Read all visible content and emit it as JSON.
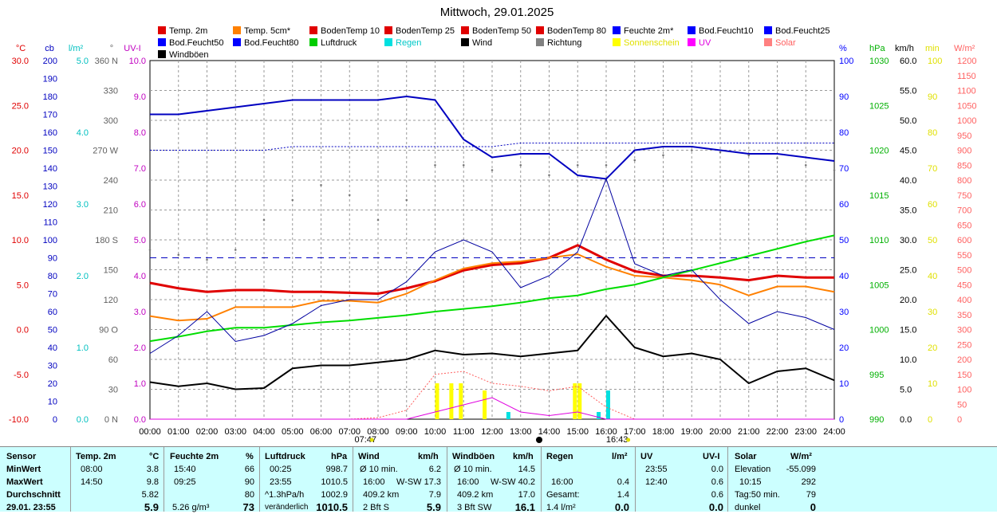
{
  "title": "Mittwoch, 29.01.2025",
  "legend": [
    {
      "label": "Temp. 2m",
      "color": "#e00000"
    },
    {
      "label": "Temp. 5cm*",
      "color": "#ff8000"
    },
    {
      "label": "BodenTemp 10",
      "color": "#e00000"
    },
    {
      "label": "BodenTemp 25",
      "color": "#e00000"
    },
    {
      "label": "BodenTemp 50",
      "color": "#e00000"
    },
    {
      "label": "BodenTemp 80",
      "color": "#e00000"
    },
    {
      "label": "Feuchte 2m*",
      "color": "#0000ff"
    },
    {
      "label": "Bod.Feucht10",
      "color": "#0000ff"
    },
    {
      "label": "Bod.Feucht25",
      "color": "#0000ff"
    },
    {
      "label": "Bod.Feucht50",
      "color": "#0000ff"
    },
    {
      "label": "Bod.Feucht80",
      "color": "#0000ff"
    },
    {
      "label": "Luftdruck",
      "color": "#00cc00"
    },
    {
      "label": "Regen",
      "color": "#00e0e0"
    },
    {
      "label": "Wind",
      "color": "#000000"
    },
    {
      "label": "Richtung",
      "color": "#808080"
    },
    {
      "label": "Sonnenschein",
      "color": "#ffff00"
    },
    {
      "label": "UV",
      "color": "#ff00ff"
    },
    {
      "label": "Solar",
      "color": "#ff8080"
    },
    {
      "label": "Windböen",
      "color": "#000000"
    }
  ],
  "axes": {
    "temp": {
      "unit": "°C",
      "color": "#e00000",
      "ticks": [
        "30.0",
        "25.0",
        "20.0",
        "15.0",
        "10.0",
        "5.0",
        "0.0",
        "-5.0",
        "-10.0"
      ]
    },
    "cb": {
      "unit": "cb",
      "color": "#0000c0",
      "ticks": [
        "200",
        "190",
        "180",
        "170",
        "160",
        "150",
        "140",
        "130",
        "120",
        "110",
        "100",
        "90",
        "80",
        "70",
        "60",
        "50",
        "40",
        "30",
        "20",
        "10",
        "0"
      ]
    },
    "rain": {
      "unit": "l/m²",
      "color": "#00c0c0",
      "ticks": [
        "5.0",
        "4.0",
        "3.0",
        "2.0",
        "1.0",
        "0.0"
      ]
    },
    "dir": {
      "unit": "°",
      "color": "#606060",
      "ticks": [
        "360 N",
        "330",
        "300",
        "270 W",
        "240",
        "210",
        "180 S",
        "150",
        "120",
        "90 O",
        "60",
        "30",
        "0 N"
      ]
    },
    "uv": {
      "unit": "UV-I",
      "color": "#c000c0",
      "ticks": [
        "10.0",
        "9.0",
        "8.0",
        "7.0",
        "6.0",
        "5.0",
        "4.0",
        "3.0",
        "2.0",
        "1.0",
        "0.0"
      ]
    },
    "hum": {
      "unit": "%",
      "color": "#0000ff",
      "ticks": [
        "100",
        "90",
        "80",
        "70",
        "60",
        "50",
        "40",
        "30",
        "20",
        "10",
        "0"
      ]
    },
    "press": {
      "unit": "hPa",
      "color": "#00b000",
      "ticks": [
        "1030",
        "1025",
        "1020",
        "1015",
        "1010",
        "1005",
        "1000",
        "995",
        "990"
      ]
    },
    "wind": {
      "unit": "km/h",
      "color": "#000000",
      "ticks": [
        "60.0",
        "55.0",
        "50.0",
        "45.0",
        "40.0",
        "35.0",
        "30.0",
        "25.0",
        "20.0",
        "15.0",
        "10.0",
        "5.0",
        "0.0"
      ]
    },
    "sun": {
      "unit": "min",
      "color": "#e0e000",
      "ticks": [
        "100",
        "90",
        "80",
        "70",
        "60",
        "50",
        "40",
        "30",
        "20",
        "10",
        "0"
      ]
    },
    "solar": {
      "unit": "W/m²",
      "color": "#ff6060",
      "ticks": [
        "1200",
        "1150",
        "1100",
        "1050",
        "1000",
        "950",
        "900",
        "850",
        "800",
        "750",
        "700",
        "650",
        "600",
        "550",
        "500",
        "450",
        "400",
        "350",
        "300",
        "250",
        "200",
        "150",
        "100",
        "50",
        "0"
      ]
    }
  },
  "sun_events": {
    "sunrise": "07:47",
    "sunset": "16:43"
  },
  "chart_data": {
    "type": "line",
    "x": [
      "00:00",
      "01:00",
      "02:00",
      "03:00",
      "04:00",
      "05:00",
      "06:00",
      "07:00",
      "08:00",
      "09:00",
      "10:00",
      "11:00",
      "12:00",
      "13:00",
      "14:00",
      "15:00",
      "16:00",
      "17:00",
      "18:00",
      "19:00",
      "20:00",
      "21:00",
      "22:00",
      "23:00",
      "24:00"
    ],
    "series": [
      {
        "name": "Temp. 2m",
        "axis": "temp",
        "values": [
          5.2,
          4.6,
          4.2,
          4.4,
          4.4,
          4.2,
          4.2,
          4.1,
          4.0,
          4.6,
          5.4,
          6.6,
          7.2,
          7.4,
          8.0,
          9.4,
          7.8,
          6.5,
          6.0,
          6.0,
          5.8,
          5.5,
          6.0,
          5.8,
          5.8
        ]
      },
      {
        "name": "Temp. 5cm*",
        "axis": "temp",
        "values": [
          1.5,
          1.0,
          1.2,
          2.5,
          2.5,
          2.5,
          3.2,
          3.2,
          3.0,
          4.0,
          5.5,
          6.8,
          7.4,
          7.6,
          8.0,
          8.4,
          7.0,
          6.0,
          5.8,
          5.5,
          5.0,
          3.8,
          4.8,
          4.8,
          4.2
        ]
      },
      {
        "name": "Feuchte 2m*",
        "axis": "hum",
        "values": [
          85,
          85,
          86,
          87,
          88,
          89,
          89,
          89,
          89,
          90,
          89,
          78,
          73,
          74,
          74,
          68,
          67,
          75,
          76,
          76,
          75,
          74,
          74,
          73,
          72
        ]
      },
      {
        "name": "Bod.Feucht10",
        "axis": "hum",
        "values": [
          75,
          75,
          75,
          75,
          75,
          76,
          76,
          76,
          76,
          76,
          76,
          76,
          76,
          77,
          77,
          77,
          77,
          77,
          77,
          77,
          77,
          77,
          77,
          77,
          77
        ]
      },
      {
        "name": "Bod.Feucht80",
        "axis": "hum",
        "values": [
          45,
          45,
          45,
          45,
          45,
          45,
          45,
          45,
          45,
          45,
          45,
          45,
          45,
          45,
          45,
          45,
          45,
          45,
          45,
          45,
          45,
          45,
          45,
          45,
          45
        ]
      },
      {
        "name": "Luftdruck",
        "axis": "press",
        "values": [
          998.7,
          999.2,
          999.8,
          1000.2,
          1000.2,
          1000.5,
          1000.8,
          1001.0,
          1001.3,
          1001.6,
          1002.0,
          1002.3,
          1002.6,
          1003.0,
          1003.5,
          1003.8,
          1004.5,
          1005.0,
          1005.8,
          1006.6,
          1007.4,
          1008.2,
          1009.0,
          1009.8,
          1010.5
        ]
      },
      {
        "name": "Wind",
        "axis": "wind",
        "values": [
          6.2,
          5.5,
          6.0,
          5.0,
          5.2,
          8.5,
          9.0,
          9.0,
          9.5,
          10.0,
          11.5,
          10.8,
          11.0,
          10.5,
          11.0,
          11.5,
          17.3,
          12.0,
          10.5,
          11.0,
          10.0,
          6.0,
          8.0,
          8.5,
          6.5
        ]
      },
      {
        "name": "Windböen",
        "axis": "wind",
        "values": [
          11.0,
          14.0,
          18.0,
          13.0,
          14.0,
          16.0,
          19.0,
          20.0,
          20.0,
          23.0,
          28.0,
          30.0,
          28.0,
          22.0,
          24.0,
          28.0,
          40.2,
          26.0,
          24.0,
          25.0,
          20.0,
          16.0,
          18.0,
          17.0,
          15.0
        ]
      },
      {
        "name": "Richtung",
        "axis": "dir",
        "values": [
          170,
          165,
          160,
          170,
          200,
          220,
          235,
          225,
          200,
          220,
          255,
          255,
          250,
          255,
          245,
          255,
          255,
          260,
          265,
          270,
          268,
          265,
          262,
          255,
          250
        ]
      },
      {
        "name": "Solar",
        "axis": "solar",
        "values": [
          0,
          0,
          0,
          0,
          0,
          0,
          0,
          0,
          5,
          30,
          150,
          160,
          120,
          110,
          95,
          110,
          40,
          0,
          0,
          0,
          0,
          0,
          0,
          0,
          0
        ]
      },
      {
        "name": "UV",
        "axis": "uv",
        "values": [
          0,
          0,
          0,
          0,
          0,
          0,
          0,
          0,
          0,
          0,
          0.2,
          0.4,
          0.6,
          0.2,
          0.1,
          0.2,
          0,
          0,
          0,
          0,
          0,
          0,
          0,
          0,
          0
        ]
      }
    ],
    "sunshine_bars": [
      {
        "t": "10:00",
        "v": 10
      },
      {
        "t": "10:30",
        "v": 10
      },
      {
        "t": "10:50",
        "v": 10
      },
      {
        "t": "11:40",
        "v": 8
      },
      {
        "t": "14:50",
        "v": 10
      },
      {
        "t": "15:00",
        "v": 10
      }
    ],
    "rain_bars": [
      {
        "t": "12:30",
        "v": 0.1
      },
      {
        "t": "15:40",
        "v": 0.1
      },
      {
        "t": "16:00",
        "v": 0.4
      }
    ]
  },
  "summary": {
    "row_labels": [
      "Sensor",
      "MinWert",
      "MaxWert",
      "Durchschnitt",
      "29.01. 23:55"
    ],
    "temp": {
      "header": "Temp. 2m",
      "unit": "°C",
      "min_time": "08:00",
      "min": "3.8",
      "max_time": "14:50",
      "max": "9.8",
      "avg": "5.82",
      "cur": "5.9"
    },
    "hum": {
      "header": "Feuchte 2m",
      "unit": "%",
      "min_time": "15:40",
      "min": "66",
      "max_time": "09:25",
      "max": "90",
      "avg": "80",
      "cur_extra": "5.26 g/m³",
      "cur": "73"
    },
    "press": {
      "header": "Luftdruck",
      "unit": "hPa",
      "min_time": "00:25",
      "min": "998.7",
      "max_time": "23:55",
      "max": "1010.5",
      "avg_label": "^1.3hPa/h",
      "avg": "1002.9",
      "cur_label": "veränderlich",
      "cur": "1010.5"
    },
    "wind": {
      "header": "Wind",
      "unit": "km/h",
      "r1a": "Ø 10 min.",
      "r1b": "6.2",
      "r2a": "16:00",
      "r2b": "W-SW",
      "r2c": "17.3",
      "r3a": "409.2 km",
      "r3b": "7.9",
      "r4a": "2 Bft S",
      "r4b": "5.9"
    },
    "gust": {
      "header": "Windböen",
      "unit": "km/h",
      "r1a": "Ø 10 min.",
      "r1b": "14.5",
      "r2a": "16:00",
      "r2b": "W-SW",
      "r2c": "40.2",
      "r3a": "409.2 km",
      "r3b": "17.0",
      "r4a": "3 Bft SW",
      "r4b": "16.1"
    },
    "rain": {
      "header": "Regen",
      "unit": "l/m²",
      "r2a": "16:00",
      "r2b": "0.4",
      "r3a": "Gesamt:",
      "r3b": "1.4",
      "r4a": "1.4 l/m²",
      "r4b": "0.0"
    },
    "uv": {
      "header": "UV",
      "unit": "UV-I",
      "r1a": "23:55",
      "r1b": "0.0",
      "r2a": "12:40",
      "r2b": "0.6",
      "r3b": "0.6",
      "r4b": "0.0"
    },
    "solar": {
      "header": "Solar",
      "unit": "W/m²",
      "r1a": "Elevation",
      "r1b": "-55.099",
      "r2a": "10:15",
      "r2b": "292",
      "r3a": "Tag:50 min.",
      "r3b": "79",
      "r4a": "dunkel",
      "r4b": "0"
    }
  }
}
